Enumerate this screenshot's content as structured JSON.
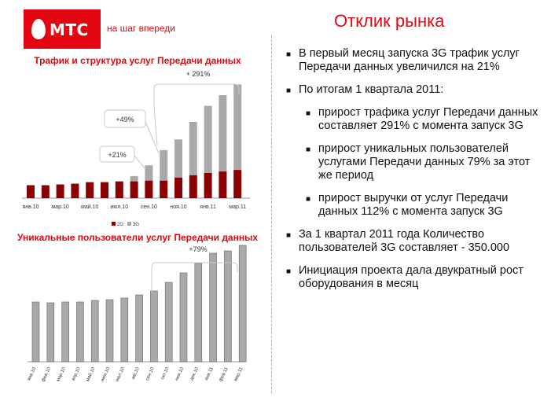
{
  "header": {
    "brand": "МТС",
    "slogan": "на шаг впереди",
    "title": "Отклик рынка",
    "brand_color": "#e30611"
  },
  "chart_data": [
    {
      "type": "bar",
      "stacked": true,
      "title": "Трафик и структура услуг Передачи данных",
      "categories": [
        "янв.10",
        "",
        "мар.10",
        "",
        "май.10",
        "",
        "июл.10",
        "",
        "сен.10",
        "",
        "ноя.10",
        "",
        "янв.11",
        "",
        "мар.11"
      ],
      "series": [
        {
          "name": "2G",
          "color": "#8b0000",
          "values": [
            17,
            17,
            18,
            19,
            21,
            21,
            22,
            22,
            23,
            23,
            27,
            30,
            33,
            35,
            37
          ]
        },
        {
          "name": "3G",
          "color": "#a9a9a9",
          "values": [
            0,
            0,
            0,
            0,
            0,
            0,
            0,
            7,
            20,
            40,
            50,
            70,
            88,
            100,
            112
          ]
        }
      ],
      "legend": "bottom",
      "annotations": [
        "+21%",
        "+49%",
        "+ 291%"
      ]
    },
    {
      "type": "bar",
      "title": "Уникальные пользователи услуг Передачи данных",
      "categories": [
        "янв.10",
        "фев.10",
        "мар.10",
        "апр.10",
        "май.10",
        "июн.10",
        "июл.10",
        "авг.10",
        "сен.10",
        "окт.10",
        "ноя.10",
        "дек.10",
        "янв.11",
        "фев.11",
        "мар.11"
      ],
      "series": [
        {
          "color": "#a9a9a9",
          "values": [
            76,
            75,
            76,
            76,
            78,
            79,
            81,
            85,
            90,
            101,
            113,
            125,
            138,
            141,
            148
          ]
        }
      ],
      "annotations": [
        "+79%"
      ]
    }
  ],
  "legend": {
    "items": [
      "2G",
      "3G"
    ]
  },
  "bullets": [
    {
      "text": "В первый месяц запуска 3G трафик услуг Передачи данных увеличился на 21%",
      "sub": false
    },
    {
      "text": "По итогам 1 квартала 2011:",
      "sub": false
    },
    {
      "text": "прирост трафика услуг Передачи данных составляет 291% с момента запуск 3G",
      "sub": true
    },
    {
      "text": "прирост  уникальных пользователей услугами Передачи данных 79% за этот же период",
      "sub": true
    },
    {
      "text": "прирост выручки от услуг Передачи данных 112% с момента запуск 3G",
      "sub": true
    },
    {
      "text": "За 1 квартал 2011 года Количество пользователей 3G составляет - 350.000",
      "sub": false
    },
    {
      "text": "Инициация проекта дала двукратный рост оборудования в месяц",
      "sub": false
    }
  ]
}
